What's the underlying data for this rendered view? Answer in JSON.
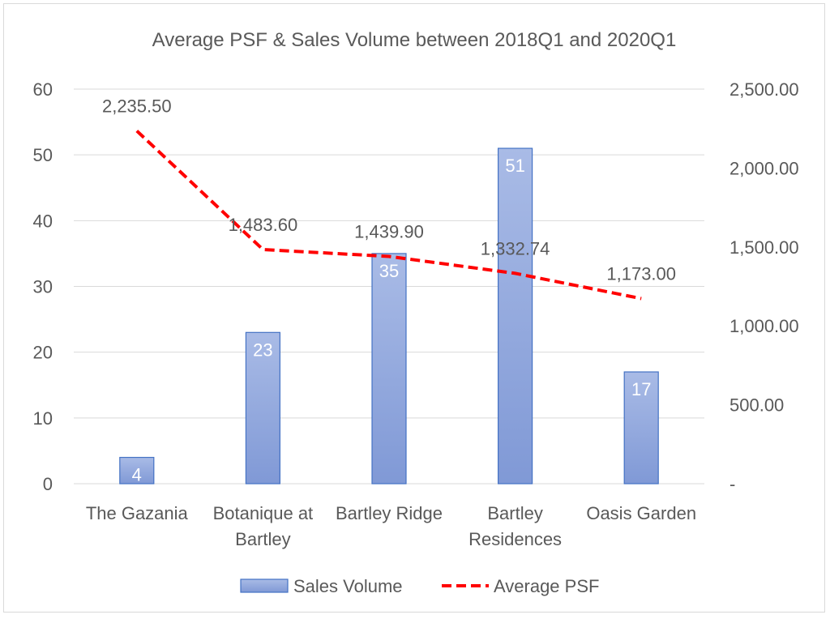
{
  "chart_data": {
    "type": "bar+line",
    "title": "Average PSF & Sales Volume between 2018Q1 and 2020Q1",
    "categories": [
      "The Gazania",
      "Botanique at Bartley",
      "Bartley Ridge",
      "Bartley Residences",
      "Oasis Garden"
    ],
    "category_lines": [
      [
        "The Gazania"
      ],
      [
        "Botanique at",
        "Bartley"
      ],
      [
        "Bartley Ridge"
      ],
      [
        "Bartley",
        "Residences"
      ],
      [
        "Oasis Garden"
      ]
    ],
    "series": [
      {
        "name": "Sales Volume",
        "type": "bar",
        "axis": "left",
        "values": [
          4,
          23,
          35,
          51,
          17
        ],
        "labels": [
          "4",
          "23",
          "35",
          "51",
          "17"
        ],
        "color": "#8FA8DE"
      },
      {
        "name": "Average PSF",
        "type": "line",
        "axis": "right",
        "values": [
          2235.5,
          1483.6,
          1439.9,
          1332.74,
          1173.0
        ],
        "labels": [
          "2,235.50",
          "1,483.60",
          "1,439.90",
          "1,332.74",
          "1,173.00"
        ],
        "color": "#FF0000"
      }
    ],
    "y_left": {
      "min": 0,
      "max": 60,
      "ticks": [
        0,
        10,
        20,
        30,
        40,
        50,
        60
      ],
      "tick_labels": [
        "0",
        "10",
        "20",
        "30",
        "40",
        "50",
        "60"
      ]
    },
    "y_right": {
      "min": 0,
      "max": 2500,
      "ticks": [
        0,
        500,
        1000,
        1500,
        2000,
        2500
      ],
      "tick_labels": [
        "-",
        "500.00",
        "1,000.00",
        "1,500.00",
        "2,000.00",
        "2,500.00"
      ]
    },
    "grid": true,
    "legend": "bottom",
    "colors": {
      "bar_fill_top": "#A9BBE6",
      "bar_fill_bottom": "#8099D6",
      "bar_stroke": "#4472C4",
      "grid": "#d9d9d9",
      "line": "#FF0000"
    }
  }
}
